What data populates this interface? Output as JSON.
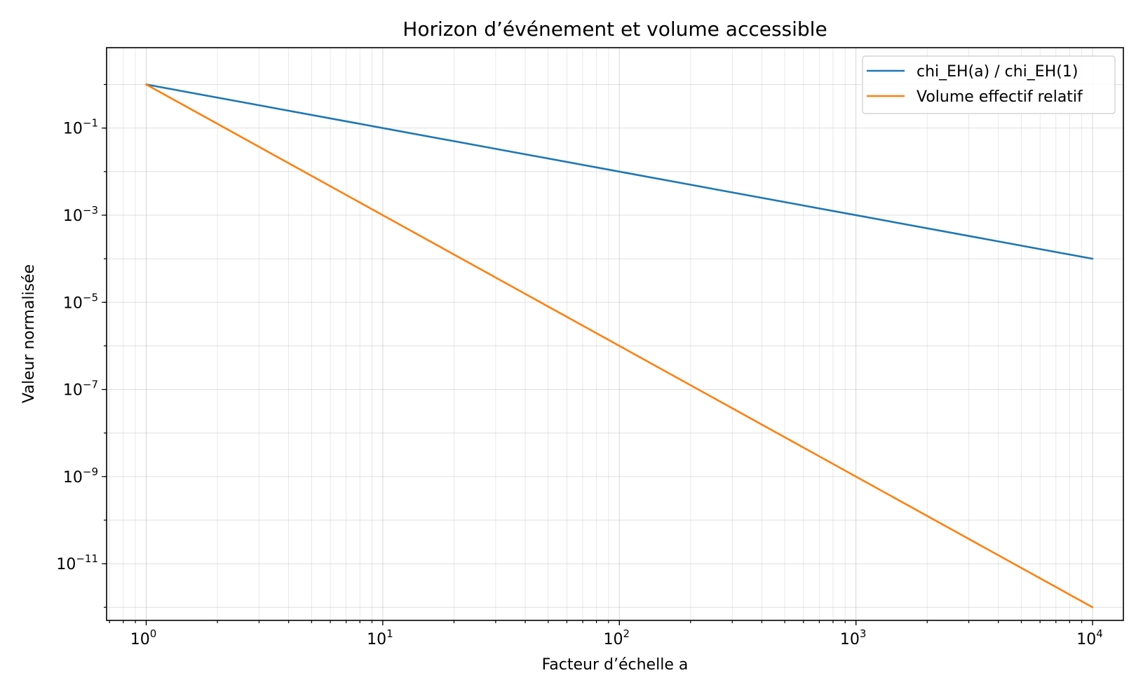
{
  "chart_data": {
    "type": "line",
    "title": "Horizon d’événement et volume accessible",
    "xlabel": "Facteur d’échelle a",
    "ylabel": "Valeur normalisée",
    "x_scale": "log",
    "y_scale": "log",
    "xlim": [
      0.68,
      13500
    ],
    "ylim": [
      5e-13,
      7
    ],
    "x_ticks": [
      {
        "value": 1,
        "base": "10",
        "exp": "0"
      },
      {
        "value": 10,
        "base": "10",
        "exp": "1"
      },
      {
        "value": 100,
        "base": "10",
        "exp": "2"
      },
      {
        "value": 1000,
        "base": "10",
        "exp": "3"
      },
      {
        "value": 10000,
        "base": "10",
        "exp": "4"
      }
    ],
    "y_ticks": [
      {
        "value": 0.1,
        "base": "10",
        "exp": "−1"
      },
      {
        "value": 0.001,
        "base": "10",
        "exp": "−3"
      },
      {
        "value": 1e-05,
        "base": "10",
        "exp": "−5"
      },
      {
        "value": 1e-07,
        "base": "10",
        "exp": "−7"
      },
      {
        "value": 1e-09,
        "base": "10",
        "exp": "−9"
      },
      {
        "value": 1e-11,
        "base": "10",
        "exp": "−11"
      }
    ],
    "grid": true,
    "legend_position": "top-right",
    "series": [
      {
        "name": "chi_EH(a) / chi_EH(1)",
        "color": "#1f77b4",
        "x": [
          1,
          10,
          100,
          1000,
          10000
        ],
        "y": [
          1,
          0.1,
          0.01,
          0.001,
          0.0001
        ]
      },
      {
        "name": "Volume effectif relatif",
        "color": "#ff7f0e",
        "x": [
          1,
          10,
          100,
          1000,
          10000
        ],
        "y": [
          1,
          0.001,
          1e-06,
          1e-09,
          1e-12
        ]
      }
    ]
  }
}
